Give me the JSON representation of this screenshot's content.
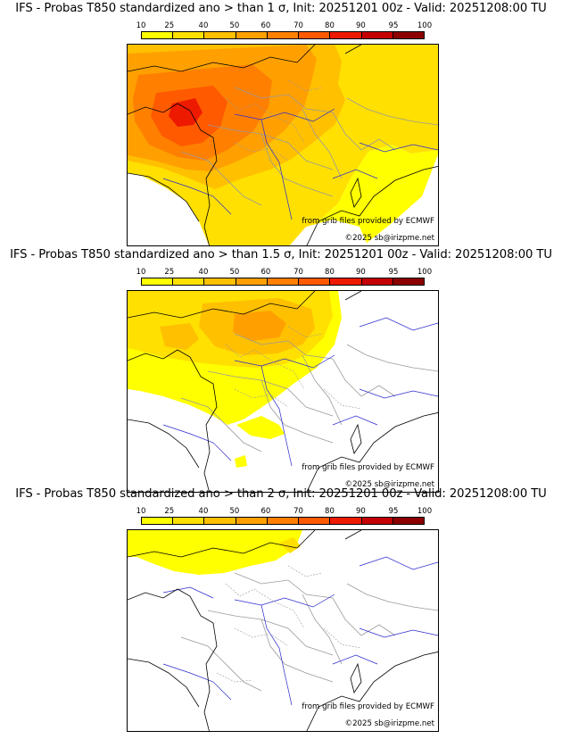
{
  "legend": {
    "ticks": [
      "10",
      "25",
      "40",
      "50",
      "60",
      "70",
      "80",
      "90",
      "95",
      "100"
    ],
    "colors": [
      "#ffff00",
      "#ffe000",
      "#ffc000",
      "#ffa000",
      "#ff8000",
      "#ff5a00",
      "#ee1a00",
      "#c40000",
      "#8c0000",
      "#4a0000"
    ]
  },
  "panels": [
    {
      "title": "IFS - Probas T850  standardized ano > than 1 σ, Init: 20251201 00z - Valid: 20251208:00 TU",
      "source_credit": "from grib files provided by ECMWF",
      "copyright": "©2025 sb@irizpme.net"
    },
    {
      "title": "IFS - Probas T850  standardized ano > than 1.5 σ, Init: 20251201 00z - Valid: 20251208:00 TU",
      "source_credit": "from grib files provided by ECMWF",
      "copyright": "©2025 sb@irizpme.net"
    },
    {
      "title": "IFS - Probas T850  standardized ano > than 2 σ, Init: 20251201 00z - Valid: 20251208:00 TU",
      "source_credit": "from grib files provided by ECMWF",
      "copyright": "©2025 sb@irizpme.net"
    }
  ],
  "colors": {
    "coast": "#000000",
    "rivers": "#2a2ad0",
    "borders": "#9a9a9a",
    "p10": "#ffff00",
    "p25": "#ffe000",
    "p40": "#ffc000",
    "p50": "#ffa000",
    "p60": "#ff8000",
    "p70": "#ff5a00",
    "p80": "#ee1a00"
  }
}
